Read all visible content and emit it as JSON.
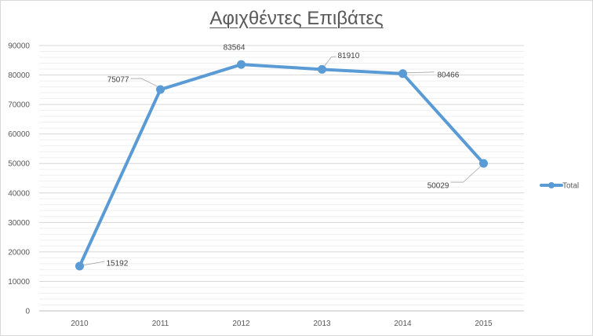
{
  "chart_data": {
    "type": "line",
    "title": "Αφιχθέντες Επιβάτες",
    "categories": [
      "2010",
      "2011",
      "2012",
      "2013",
      "2014",
      "2015"
    ],
    "series": [
      {
        "name": "Total",
        "values": [
          15192,
          75077,
          83564,
          81910,
          80466,
          50029
        ]
      }
    ],
    "data_labels": [
      "15192",
      "75077",
      "83564",
      "81910",
      "80466",
      "50029"
    ],
    "y_ticks": [
      "0",
      "10000",
      "20000",
      "30000",
      "40000",
      "50000",
      "60000",
      "70000",
      "80000",
      "90000"
    ],
    "ylim": [
      0,
      90000
    ],
    "grid": true,
    "minor_grid": true,
    "legend_position": "right",
    "series_color": "#5b9bd5",
    "grid_color": "#d9d9d9",
    "leader_line_color": "#a6a6a6"
  }
}
